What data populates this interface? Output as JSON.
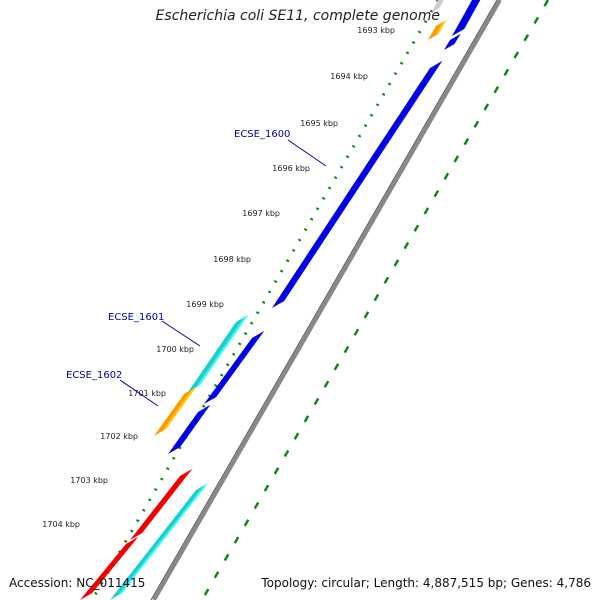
{
  "title": "Escherichia coli SE11, complete genome",
  "accession_text": "Accession: NC_011415",
  "summary_text": "Topology: circular; Length: 4,887,515 bp; Genes: 4,786",
  "colors": {
    "forward_blue": "#0000dd",
    "cyan": "#22cccc",
    "orange": "#ff9900",
    "red": "#ee0000",
    "light_gray": "#cccccc",
    "backbone": "#888888",
    "dots": "#118811",
    "label_blue": "#0000aa"
  },
  "ticks": [
    "1693 kbp",
    "1694 kbp",
    "1695 kbp",
    "1696 kbp",
    "1697 kbp",
    "1698 kbp",
    "1699 kbp",
    "1700 kbp",
    "1701 kbp",
    "1702 kbp",
    "1703 kbp",
    "1704 kbp"
  ],
  "gene_labels": [
    "ECSE_1600",
    "ECSE_1601",
    "ECSE_1602"
  ],
  "features": [
    {
      "name": "gene-feature-gray-top",
      "color": "light_gray",
      "track": "outer"
    },
    {
      "name": "gene-feature-orange-top",
      "color": "orange",
      "track": "outer"
    },
    {
      "name": "gene-feature-blue-top",
      "color": "forward_blue",
      "track": "inner"
    },
    {
      "name": "gene-feature-blue-small",
      "color": "forward_blue",
      "track": "inner"
    },
    {
      "name": "gene-feature-ecse-1600",
      "color": "forward_blue",
      "track": "inner"
    },
    {
      "name": "gene-feature-ecse-1601-cyan",
      "color": "cyan",
      "track": "outer"
    },
    {
      "name": "gene-feature-ecse-1601-blue",
      "color": "forward_blue",
      "track": "inner"
    },
    {
      "name": "gene-feature-ecse-1602-orange",
      "color": "orange",
      "track": "outer"
    },
    {
      "name": "gene-feature-ecse-1602-blue",
      "color": "forward_blue",
      "track": "inner"
    },
    {
      "name": "gene-feature-red-1",
      "color": "red",
      "track": "outer"
    },
    {
      "name": "gene-feature-cyan-bottom",
      "color": "cyan",
      "track": "inner"
    },
    {
      "name": "gene-feature-red-2",
      "color": "red",
      "track": "outer"
    }
  ]
}
